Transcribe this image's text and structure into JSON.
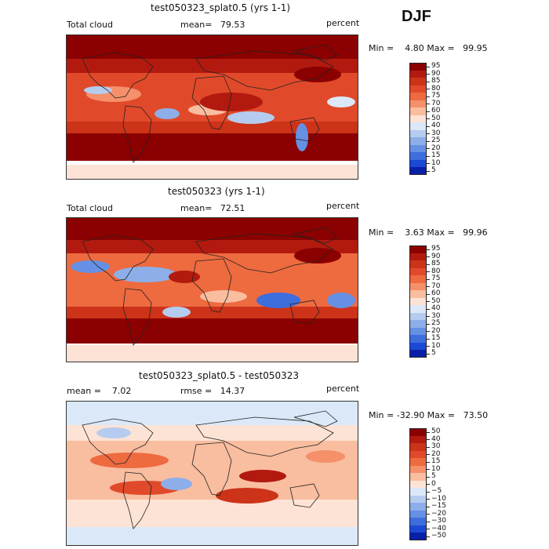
{
  "season": "DJF",
  "panels": [
    {
      "title": "test050323_splat0.5 (yrs 1-1)",
      "left_label": "Total cloud",
      "mean_text": "mean=   79.53",
      "right_label": "percent",
      "minmax_text": "Min =    4.80 Max =   99.95",
      "field": "model",
      "colorbar_levels": [
        "95",
        "90",
        "85",
        "80",
        "75",
        "70",
        "60",
        "50",
        "40",
        "30",
        "25",
        "20",
        "15",
        "10",
        "5"
      ],
      "colorbar_colors": [
        "#8b0000",
        "#b31a0f",
        "#cc3319",
        "#e04a2a",
        "#ee6a3f",
        "#f5906a",
        "#f9bd9f",
        "#fde3d5",
        "#dbe8f7",
        "#b5ccf0",
        "#8eaee9",
        "#6690e3",
        "#3e6ddc",
        "#1a4ad5",
        "#0a1fa8"
      ]
    },
    {
      "title": "test050323 (yrs 1-1)",
      "left_label": "Total cloud",
      "mean_text": "mean=   72.51",
      "right_label": "percent",
      "minmax_text": "Min =    3.63 Max =   99.96",
      "field": "model",
      "colorbar_levels": [
        "95",
        "90",
        "85",
        "80",
        "75",
        "70",
        "60",
        "50",
        "40",
        "30",
        "25",
        "20",
        "15",
        "10",
        "5"
      ],
      "colorbar_colors": [
        "#8b0000",
        "#b31a0f",
        "#cc3319",
        "#e04a2a",
        "#ee6a3f",
        "#f5906a",
        "#f9bd9f",
        "#fde3d5",
        "#dbe8f7",
        "#b5ccf0",
        "#8eaee9",
        "#6690e3",
        "#3e6ddc",
        "#1a4ad5",
        "#0a1fa8"
      ]
    },
    {
      "title": "test050323_splat0.5 - test050323",
      "left_label": "mean =    7.02",
      "mean_text": "rmse =   14.37",
      "right_label": "percent",
      "minmax_text": "Min = -32.90 Max =   73.50",
      "field": "difference",
      "colorbar_levels": [
        "50",
        "40",
        "30",
        "20",
        "15",
        "10",
        "5",
        "0",
        "−5",
        "−10",
        "−15",
        "−20",
        "−30",
        "−40",
        "−50"
      ],
      "colorbar_colors": [
        "#8b0000",
        "#b31a0f",
        "#cc3319",
        "#e04a2a",
        "#ee6a3f",
        "#f5906a",
        "#f9bd9f",
        "#fde3d5",
        "#dbe8f7",
        "#b5ccf0",
        "#8eaee9",
        "#6690e3",
        "#3e6ddc",
        "#1a4ad5",
        "#0a1fa8"
      ]
    }
  ]
}
